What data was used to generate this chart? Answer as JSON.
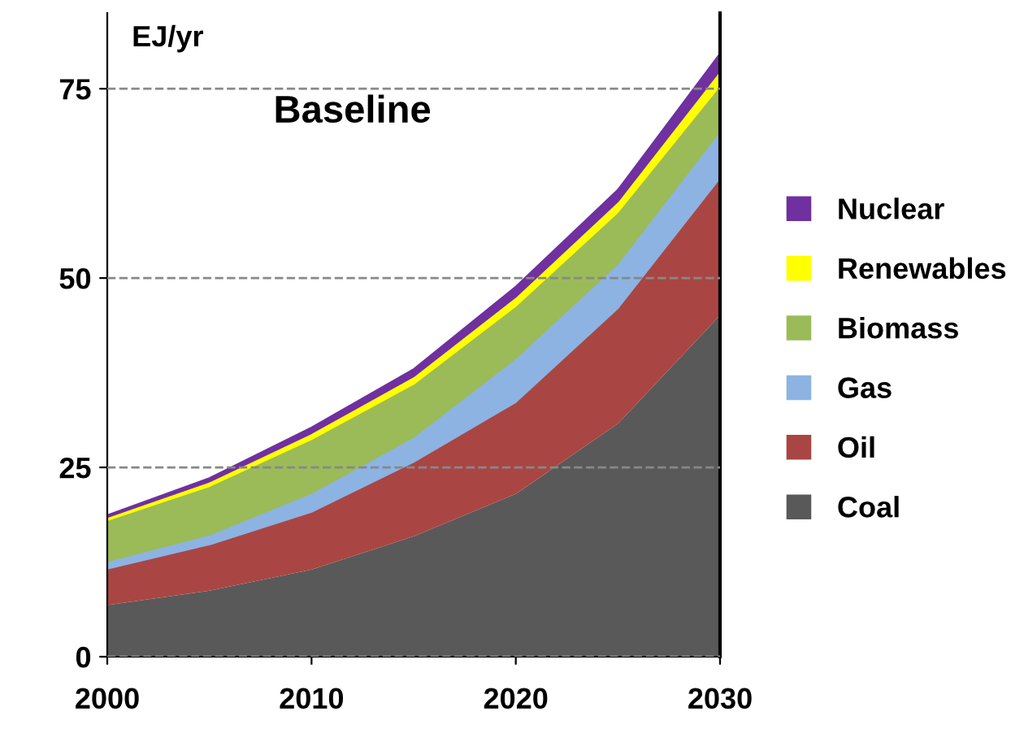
{
  "chart_data": {
    "type": "area",
    "stacked": true,
    "title": "Baseline",
    "ylabel": "EJ/yr",
    "x": [
      "2000",
      "2005",
      "2010",
      "2015",
      "2020",
      "2025",
      "2030"
    ],
    "series": [
      {
        "name": "Coal",
        "color": "#595959",
        "values": [
          6.9,
          8.8,
          11.6,
          16,
          21.6,
          30.9,
          45.2
        ]
      },
      {
        "name": "Oil",
        "color": "#a94643",
        "values": [
          4.7,
          6,
          7.5,
          9.7,
          12,
          15.1,
          18
        ]
      },
      {
        "name": "Gas",
        "color": "#8db3e2",
        "values": [
          1,
          1.3,
          2.5,
          3.3,
          5.8,
          5.9,
          6.2
        ]
      },
      {
        "name": "Biomass",
        "color": "#9bbb59",
        "values": [
          5.4,
          6.4,
          7.1,
          7,
          6.9,
          6.8,
          6
        ]
      },
      {
        "name": "Renewables",
        "color": "#ffff00",
        "values": [
          0.4,
          0.6,
          0.8,
          1,
          1.2,
          1.4,
          2
        ]
      },
      {
        "name": "Nuclear",
        "color": "#7030a0",
        "values": [
          0.3,
          0.5,
          0.8,
          1,
          1.4,
          1.6,
          2.3
        ]
      }
    ],
    "xlim": [
      "2000",
      "2030"
    ],
    "xticks": [
      "2000",
      "2010",
      "2020",
      "2030"
    ],
    "ylim": [
      0,
      85
    ],
    "yticks": [
      0,
      25,
      50,
      75
    ],
    "grid": "y",
    "legend": "right"
  }
}
